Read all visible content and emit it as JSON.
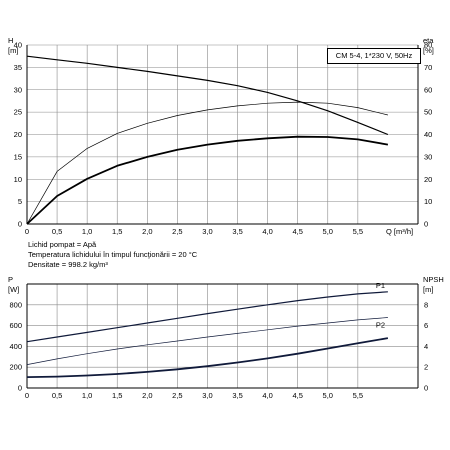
{
  "fluid_info": {
    "line1": "Lichid pompat = Apă",
    "line2": "Temperatura lichidului în timpul funcţionării = 20 °C",
    "line3": "Densitate = 998.2 kg/m³"
  },
  "chart_data": [
    {
      "type": "line",
      "title": "CM 5-4, 1*230 V, 50Hz",
      "x_axis": {
        "label": "Q",
        "unit": "[m³/h]",
        "range": [
          0,
          6.5
        ],
        "ticks": [
          "0",
          "0,5",
          "1,0",
          "1,5",
          "2,0",
          "2,5",
          "3,0",
          "3,5",
          "4,0",
          "4,5",
          "5,0",
          "5,5"
        ]
      },
      "y_left": {
        "label": "H",
        "unit": "[m]",
        "range": [
          0,
          40
        ],
        "ticks": [
          "0",
          "5",
          "10",
          "15",
          "20",
          "25",
          "30",
          "35",
          "40"
        ]
      },
      "y_right": {
        "label": "eta",
        "unit": "[%]",
        "range": [
          0,
          80
        ],
        "ticks": [
          "0",
          "10",
          "20",
          "30",
          "40",
          "50",
          "60",
          "70",
          "80"
        ]
      },
      "grid": true,
      "series": [
        {
          "axis": "left",
          "weight": "medium",
          "x": [
            0,
            0.5,
            1.0,
            1.5,
            2.0,
            2.5,
            3.0,
            3.5,
            4.0,
            4.5,
            5.0,
            5.5,
            6.0
          ],
          "y": [
            37.5,
            36.7,
            35.9,
            35.0,
            34.1,
            33.1,
            32.1,
            30.9,
            29.4,
            27.5,
            25.3,
            22.7,
            20.0
          ]
        },
        {
          "axis": "right",
          "weight": "thin",
          "x": [
            0,
            0.5,
            1.0,
            1.5,
            2.0,
            2.5,
            3.0,
            3.5,
            4.0,
            4.5,
            5.0,
            5.5,
            6.0
          ],
          "y": [
            0,
            23.5,
            33.8,
            40.5,
            45.0,
            48.5,
            51.0,
            52.8,
            54.0,
            54.5,
            54.0,
            52.0,
            48.7
          ]
        },
        {
          "axis": "right",
          "weight": "bold",
          "x": [
            0,
            0.5,
            1.0,
            1.5,
            2.0,
            2.5,
            3.0,
            3.5,
            4.0,
            4.5,
            5.0,
            5.5,
            6.0
          ],
          "y": [
            0,
            12.5,
            20.2,
            26.0,
            30.0,
            33.2,
            35.5,
            37.2,
            38.3,
            39.0,
            38.9,
            37.8,
            35.5
          ]
        }
      ]
    },
    {
      "type": "line",
      "x_axis": {
        "range": [
          0,
          6.5
        ],
        "ticks": [
          "0",
          "0,5",
          "1,0",
          "1,5",
          "2,0",
          "2,5",
          "3,0",
          "3,5",
          "4,0",
          "4,5",
          "5,0",
          "5,5"
        ]
      },
      "y_left": {
        "label": "P",
        "unit": "[W]",
        "range": [
          0,
          1000
        ],
        "ticks": [
          "0",
          "200",
          "400",
          "600",
          "800"
        ]
      },
      "y_right": {
        "label": "NPSH",
        "unit": "[m]",
        "range": [
          0,
          10
        ],
        "ticks": [
          "0",
          "2",
          "4",
          "6",
          "8"
        ]
      },
      "grid": true,
      "series": [
        {
          "name": "P1",
          "axis": "left",
          "weight": "medium",
          "x": [
            0,
            0.5,
            1.0,
            1.5,
            2.0,
            2.5,
            3.0,
            3.5,
            4.0,
            4.5,
            5.0,
            5.5,
            6.0
          ],
          "y": [
            445,
            490,
            535,
            580,
            625,
            670,
            715,
            758,
            800,
            840,
            875,
            905,
            925
          ]
        },
        {
          "name": "P2",
          "axis": "left",
          "weight": "thin",
          "x": [
            0,
            0.5,
            1.0,
            1.5,
            2.0,
            2.5,
            3.0,
            3.5,
            4.0,
            4.5,
            5.0,
            5.5,
            6.0
          ],
          "y": [
            225,
            280,
            330,
            375,
            415,
            452,
            490,
            525,
            560,
            595,
            625,
            655,
            678
          ]
        },
        {
          "axis": "right",
          "weight": "bold",
          "x": [
            0,
            0.5,
            1.0,
            1.5,
            2.0,
            2.5,
            3.0,
            3.5,
            4.0,
            4.5,
            5.0,
            5.5,
            6.0
          ],
          "y": [
            1.05,
            1.1,
            1.2,
            1.35,
            1.55,
            1.8,
            2.1,
            2.45,
            2.85,
            3.3,
            3.8,
            4.3,
            4.8
          ]
        }
      ]
    }
  ]
}
